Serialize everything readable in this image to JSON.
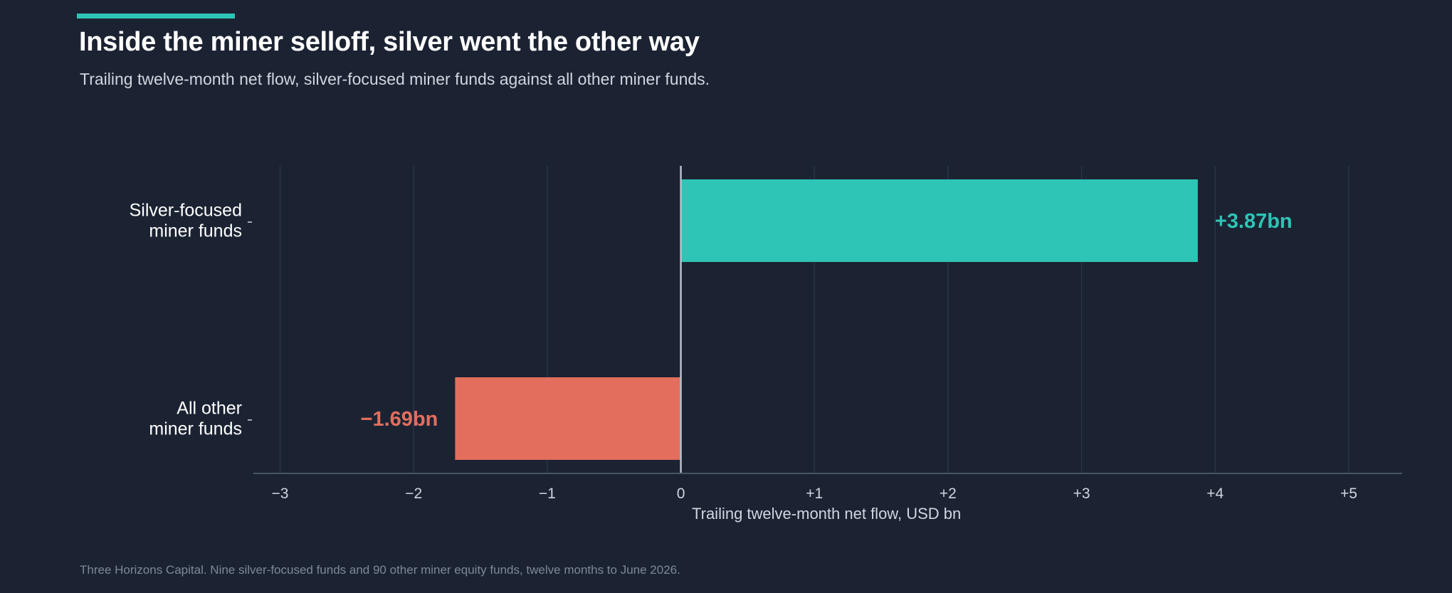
{
  "header": {
    "title": "Inside the miner selloff, silver went the other way",
    "subtitle": "Trailing twelve-month net flow, silver-focused miner funds against all other miner funds."
  },
  "footer": {
    "source": "Three Horizons Capital. Nine silver-focused funds and 90 other miner equity funds, twelve months to June 2026."
  },
  "colors": {
    "accent": "#2ec4b6",
    "positive": "#2ec4b6",
    "negative": "#e36e5e"
  },
  "chart_data": {
    "type": "bar",
    "orientation": "horizontal",
    "categories": [
      [
        "Silver-focused",
        "miner funds"
      ],
      [
        "All other",
        "miner funds"
      ]
    ],
    "values": [
      3.87,
      -1.69
    ],
    "data_labels": [
      "+3.87bn",
      "−1.69bn"
    ],
    "xlabel": "Trailing twelve-month net flow, USD bn",
    "xlim": [
      -3.2,
      5.4
    ],
    "xticks": [
      -3,
      -2,
      -1,
      0,
      1,
      2,
      3,
      4,
      5
    ],
    "xtick_labels": [
      "−3",
      "−2",
      "−1",
      "0",
      "+1",
      "+2",
      "+3",
      "+4",
      "+5"
    ],
    "grid": "vertical",
    "legend": "none"
  }
}
